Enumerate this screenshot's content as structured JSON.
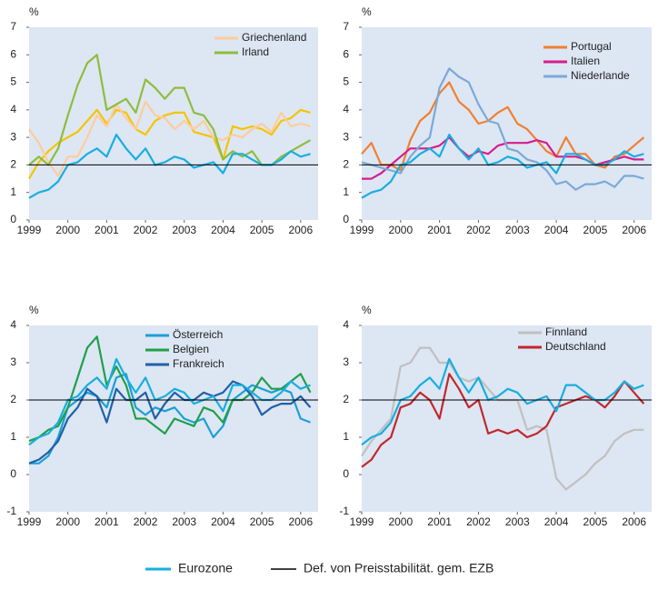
{
  "shared": {
    "x": [
      1999,
      1999.25,
      1999.5,
      1999.75,
      2000,
      2000.25,
      2000.5,
      2000.75,
      2001,
      2001.25,
      2001.5,
      2001.75,
      2002,
      2002.25,
      2002.5,
      2002.75,
      2003,
      2003.25,
      2003.5,
      2003.75,
      2004,
      2004.25,
      2004.5,
      2004.75,
      2005,
      2005.25,
      2005.5,
      2005.75,
      2006,
      2006.25
    ],
    "eurozone": {
      "name": "Eurozone",
      "color": "#18aee0",
      "values": [
        0.8,
        1.0,
        1.1,
        1.4,
        2.0,
        2.1,
        2.4,
        2.6,
        2.3,
        3.1,
        2.6,
        2.2,
        2.6,
        2.0,
        2.1,
        2.3,
        2.2,
        1.9,
        2.0,
        2.1,
        1.7,
        2.4,
        2.4,
        2.2,
        2.0,
        2.0,
        2.2,
        2.5,
        2.3,
        2.4
      ]
    },
    "reference": {
      "name": "Def. von Preisstabilität. gem. EZB",
      "color": "#000000",
      "value": 2
    }
  },
  "chart_data": [
    {
      "type": "line",
      "y_label": "%",
      "xlim": [
        1999,
        2006.45
      ],
      "xticks": [
        1999,
        2000,
        2001,
        2002,
        2003,
        2004,
        2005,
        2006
      ],
      "ylim": [
        0,
        7
      ],
      "yticks": [
        0,
        1,
        2,
        3,
        4,
        5,
        6,
        7
      ],
      "series": [
        {
          "name": null,
          "color": "#f5c400",
          "values": [
            1.5,
            2.1,
            2.5,
            2.8,
            3.0,
            3.2,
            3.6,
            4.0,
            3.5,
            4.0,
            3.9,
            3.3,
            3.1,
            3.6,
            3.8,
            3.9,
            3.9,
            3.2,
            3.1,
            3.0,
            2.2,
            3.4,
            3.3,
            3.4,
            3.3,
            3.1,
            3.6,
            3.7,
            4.0,
            3.9
          ]
        },
        {
          "name": "Griechenland",
          "color": "#fdcc9c",
          "values": [
            3.3,
            2.8,
            2.1,
            1.6,
            2.3,
            2.3,
            3.0,
            3.8,
            3.4,
            4.2,
            3.7,
            3.3,
            4.3,
            3.8,
            3.7,
            3.3,
            3.6,
            3.3,
            3.6,
            3.0,
            2.9,
            3.1,
            3.0,
            3.3,
            3.5,
            3.2,
            3.9,
            3.4,
            3.5,
            3.4
          ]
        },
        {
          "name": "Irland",
          "color": "#8ebd3c",
          "values": [
            2.0,
            2.3,
            2.0,
            2.6,
            3.8,
            4.9,
            5.7,
            6.0,
            4.0,
            4.2,
            4.4,
            3.9,
            5.1,
            4.8,
            4.4,
            4.8,
            4.8,
            3.9,
            3.8,
            3.3,
            2.2,
            2.5,
            2.3,
            2.5,
            2.0,
            2.0,
            2.3,
            2.5,
            2.7,
            2.9
          ]
        }
      ]
    },
    {
      "type": "line",
      "y_label": "%",
      "xlim": [
        1999,
        2006.45
      ],
      "xticks": [
        1999,
        2000,
        2001,
        2002,
        2003,
        2004,
        2005,
        2006
      ],
      "ylim": [
        0,
        7
      ],
      "yticks": [
        0,
        1,
        2,
        3,
        4,
        5,
        6,
        7
      ],
      "series": [
        {
          "name": "Portugal",
          "color": "#f08030",
          "values": [
            2.4,
            2.8,
            2.0,
            2.0,
            1.8,
            2.9,
            3.6,
            3.9,
            4.6,
            5.0,
            4.3,
            4.0,
            3.5,
            3.6,
            3.9,
            4.1,
            3.5,
            3.3,
            2.9,
            2.5,
            2.3,
            3.0,
            2.4,
            2.4,
            2.0,
            1.9,
            2.3,
            2.4,
            2.7,
            3.0
          ]
        },
        {
          "name": "Italien",
          "color": "#d61e8c",
          "values": [
            1.5,
            1.5,
            1.7,
            2.0,
            2.3,
            2.6,
            2.6,
            2.6,
            2.7,
            3.0,
            2.6,
            2.3,
            2.5,
            2.4,
            2.7,
            2.8,
            2.8,
            2.8,
            2.9,
            2.8,
            2.3,
            2.3,
            2.3,
            2.2,
            2.0,
            2.1,
            2.2,
            2.3,
            2.2,
            2.2
          ]
        },
        {
          "name": "Niederlande",
          "color": "#7aaad8",
          "values": [
            2.1,
            2.0,
            1.9,
            1.8,
            1.7,
            2.3,
            2.7,
            3.0,
            4.8,
            5.5,
            5.2,
            5.0,
            4.2,
            3.6,
            3.5,
            2.6,
            2.5,
            2.2,
            2.1,
            1.8,
            1.3,
            1.4,
            1.1,
            1.3,
            1.3,
            1.4,
            1.2,
            1.6,
            1.6,
            1.5
          ]
        }
      ]
    },
    {
      "type": "line",
      "y_label": "%",
      "xlim": [
        1999,
        2006.45
      ],
      "xticks": [
        1999,
        2000,
        2001,
        2002,
        2003,
        2004,
        2005,
        2006
      ],
      "ylim": [
        -1,
        4
      ],
      "yticks": [
        -1,
        0,
        1,
        2,
        3,
        4
      ],
      "series": [
        {
          "name": "Österreich",
          "color": "#1aa0d8",
          "values": [
            0.3,
            0.3,
            0.5,
            1.0,
            1.8,
            2.0,
            2.2,
            2.1,
            1.8,
            2.6,
            2.7,
            1.8,
            1.6,
            1.8,
            1.7,
            1.8,
            1.5,
            1.4,
            1.5,
            1.0,
            1.3,
            2.0,
            2.2,
            2.4,
            2.3,
            2.2,
            2.3,
            2.2,
            1.5,
            1.4
          ]
        },
        {
          "name": "Belgien",
          "color": "#1fa04a",
          "values": [
            0.9,
            1.0,
            1.2,
            1.3,
            1.8,
            2.6,
            3.4,
            3.7,
            2.4,
            2.9,
            2.4,
            1.5,
            1.5,
            1.3,
            1.1,
            1.5,
            1.4,
            1.3,
            1.8,
            1.7,
            1.4,
            2.0,
            2.0,
            2.2,
            2.6,
            2.3,
            2.3,
            2.5,
            2.7,
            2.2
          ]
        },
        {
          "name": "Frankreich",
          "color": "#2060a8",
          "values": [
            0.3,
            0.4,
            0.6,
            0.9,
            1.5,
            1.8,
            2.3,
            2.1,
            1.4,
            2.3,
            2.0,
            2.0,
            2.2,
            1.5,
            1.9,
            2.2,
            2.0,
            2.0,
            2.2,
            2.1,
            2.2,
            2.5,
            2.4,
            2.1,
            1.6,
            1.8,
            1.9,
            1.9,
            2.1,
            1.8
          ]
        }
      ]
    },
    {
      "type": "line",
      "y_label": "%",
      "xlim": [
        1999,
        2006.45
      ],
      "xticks": [
        1999,
        2000,
        2001,
        2002,
        2003,
        2004,
        2005,
        2006
      ],
      "ylim": [
        -1,
        4
      ],
      "yticks": [
        -1,
        0,
        1,
        2,
        3,
        4
      ],
      "series": [
        {
          "name": "Finnland",
          "color": "#c0c0c0",
          "values": [
            0.5,
            0.9,
            1.2,
            1.5,
            2.9,
            3.0,
            3.4,
            3.4,
            3.0,
            3.0,
            2.6,
            2.5,
            2.6,
            2.3,
            2.0,
            2.0,
            2.0,
            1.2,
            1.3,
            1.2,
            -0.1,
            -0.4,
            -0.2,
            0.0,
            0.3,
            0.5,
            0.9,
            1.1,
            1.2,
            1.2
          ]
        },
        {
          "name": "Deutschland",
          "color": "#c0282d",
          "values": [
            0.2,
            0.4,
            0.8,
            1.0,
            1.8,
            1.9,
            2.2,
            2.0,
            1.5,
            2.7,
            2.3,
            1.8,
            2.0,
            1.1,
            1.2,
            1.1,
            1.2,
            1.0,
            1.1,
            1.3,
            1.8,
            1.9,
            2.0,
            2.1,
            2.0,
            1.8,
            2.1,
            2.5,
            2.2,
            1.9
          ]
        }
      ]
    }
  ]
}
